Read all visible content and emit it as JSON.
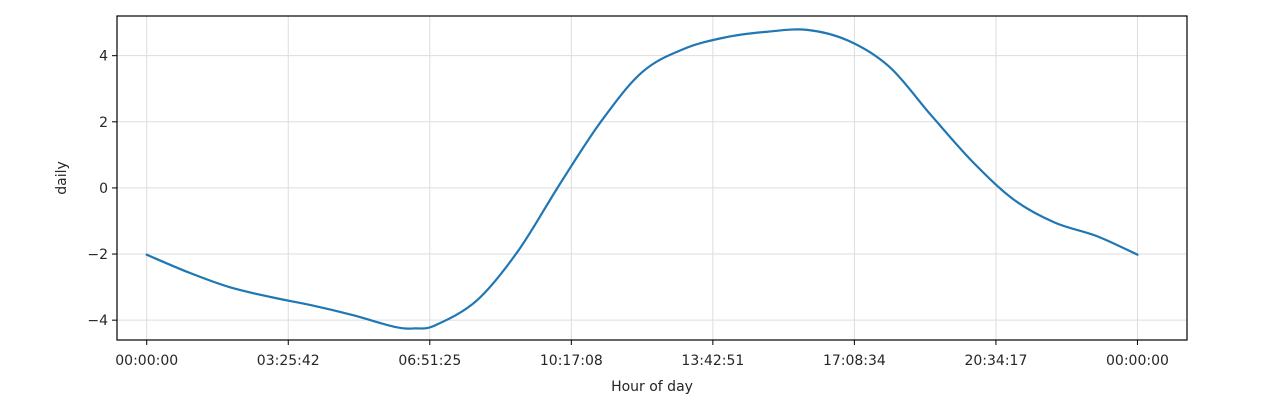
{
  "chart_data": {
    "type": "line",
    "title": "",
    "xlabel": "Hour of day",
    "ylabel": "daily",
    "x_tick_labels": [
      "00:00:00",
      "03:25:42",
      "06:51:25",
      "10:17:08",
      "13:42:51",
      "17:08:34",
      "20:34:17",
      "00:00:00"
    ],
    "y_ticks": [
      -4,
      -2,
      0,
      2,
      4
    ],
    "y_tick_labels": [
      "−4",
      "−2",
      "0",
      "2",
      "4"
    ],
    "xlim_hours": [
      -0.72,
      25.2
    ],
    "ylim": [
      -4.6,
      5.2
    ],
    "grid": true,
    "line_color": "#1f77b4",
    "series": [
      {
        "x_hours": [
          0,
          1,
          2,
          3,
          4,
          5,
          6,
          6.5,
          7,
          8,
          9,
          10,
          11,
          12,
          13,
          14,
          15,
          16,
          17,
          18,
          19,
          20,
          21,
          22,
          23,
          24
        ],
        "values": [
          -2.02,
          -2.55,
          -3.0,
          -3.3,
          -3.55,
          -3.85,
          -4.2,
          -4.25,
          -4.15,
          -3.4,
          -1.9,
          0.1,
          2.0,
          3.5,
          4.2,
          4.55,
          4.72,
          4.78,
          4.45,
          3.65,
          2.2,
          0.8,
          -0.35,
          -1.05,
          -1.45,
          -2.02
        ]
      }
    ]
  }
}
